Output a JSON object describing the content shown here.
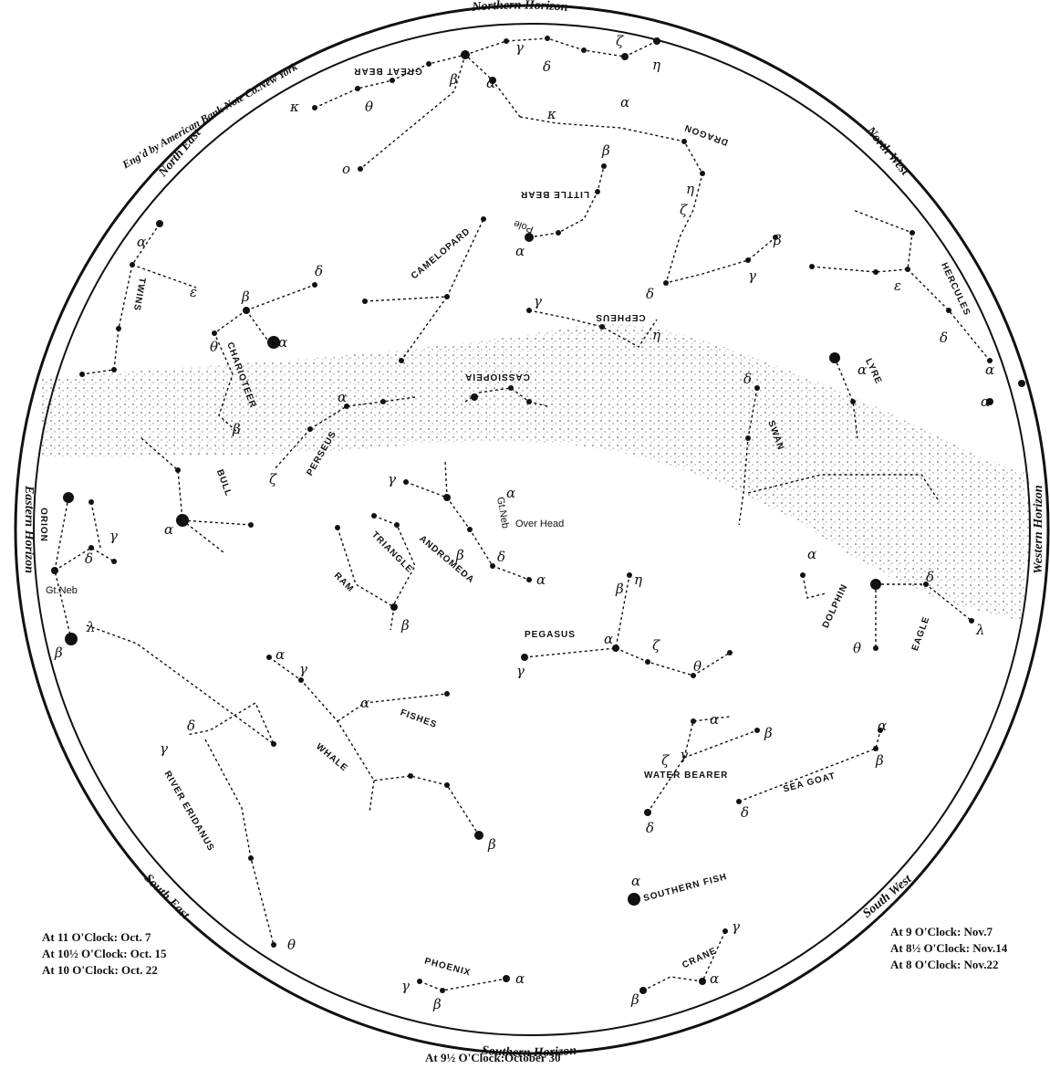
{
  "horizons": {
    "north": "Northern Horizon",
    "south": "Southern Horizon",
    "east": "Eastern Horizon",
    "west": "Western Horizon",
    "north_east": "North East",
    "north_west": "North West",
    "south_east": "South East",
    "south_west": "South West"
  },
  "engraver": "Eng'd by American Bank Note Co.New York",
  "times_left": [
    "At 11 O'Clock: Oct. 7",
    "At 10½ O'Clock: Oct. 15",
    "At 10 O'Clock: Oct. 22"
  ],
  "times_right": [
    "At 9 O'Clock: Nov.7",
    "At 8½ O'Clock: Nov.14",
    "At 8 O'Clock: Nov.22"
  ],
  "time_bottom": "At 9½ O'Clock:October 30",
  "labels": {
    "great_bear": "GREAT BEAR",
    "dragon": "DRAGON",
    "little_bear": "LITTLE BEAR",
    "pole": "Pole",
    "camelopard": "CAMELOPARD",
    "cepheus": "CEPHEUS",
    "cassiopeia": "CASSIOPEIA",
    "hercules": "HERCULES",
    "lyre": "LYRE",
    "swan": "SWAN",
    "twins": "TWINS",
    "charioteer": "CHARIOTEER",
    "perseus": "PERSEUS",
    "bull": "BULL",
    "orion": "ORION",
    "gt_neb": "Gt.Neb",
    "gt_neb_andromeda": "Gt.Neb",
    "over_head": "Over Head",
    "andromeda": "ANDROMEDA",
    "triangle": "TRIANGLE",
    "ram": "RAM",
    "pegasus": "PEGASUS",
    "dolphin": "DOLPHIN",
    "eagle": "EAGLE",
    "fishes": "FISHES",
    "whale": "WHALE",
    "river_eridanus": "RIVER ERIDANUS",
    "water_bearer": "WATER BEARER",
    "sea_goat": "SEA GOAT",
    "southern_fish": "SOUTHERN FISH",
    "crane": "CRANE",
    "phoenix": "PHOENIX"
  }
}
